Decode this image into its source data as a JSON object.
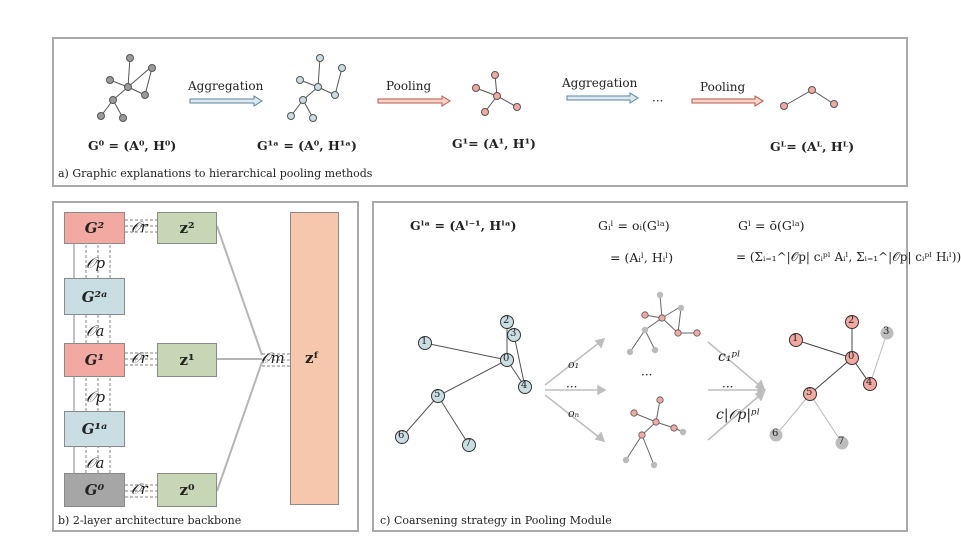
{
  "top_panel": {
    "caption": "a) Graphic explanations to hierarchical pooling methods",
    "arrows": {
      "aggregation_1": "Aggregation",
      "pooling_1": "Pooling",
      "aggregation_2": "Aggregation",
      "pooling_2": "Pooling",
      "ellipsis": "···"
    },
    "graph_labels": {
      "g0": "G⁰ = (A⁰, H⁰)",
      "g1a": "G¹ᵃ = (A⁰, H¹ᵃ)",
      "g1": "G¹= (A¹, H¹)",
      "gL": "Gᴸ= (Aᴸ, Hᴸ)"
    }
  },
  "left_panel": {
    "caption": "b) 2-layer architecture backbone",
    "boxes": {
      "g2": "G²",
      "g2a": "G²ᵃ",
      "g1": "G¹",
      "g1a": "G¹ᵃ",
      "g0": "G⁰",
      "z2": "z²",
      "z1": "z¹",
      "z0": "z⁰",
      "zF": "zᶠ"
    },
    "operators": {
      "or_2": "𝒪r",
      "op_2": "𝒪p",
      "oa_2": "𝒪a",
      "or_1": "𝒪r",
      "op_1": "𝒪p",
      "oa_1": "𝒪a",
      "or_0": "𝒪r",
      "om": "𝒪m"
    }
  },
  "right_panel": {
    "caption": "c) Coarsening strategy in Pooling Module",
    "formulas": {
      "f1": "Gˡᵃ = (Aˡ⁻¹, Hˡᵃ)",
      "f2a": "Gᵢˡ = oᵢ(Gˡᵃ)",
      "f2b": "= (Aᵢˡ, Hᵢˡ)",
      "f3a": "Gˡ = ō(Gˡᵃ)",
      "f3b": "= (Σᵢ₌₁^|𝒪p| cᵢᵖˡ Aᵢˡ, Σᵢ₌₁^|𝒪p| cᵢᵖˡ Hᵢˡ))"
    },
    "node_labels": [
      "0",
      "1",
      "2",
      "3",
      "4",
      "5",
      "6",
      "7"
    ],
    "branch_labels": {
      "o1": "o₁",
      "on": "oₙ",
      "dots_left": "···",
      "dots_mid": "···",
      "dots_right": "···",
      "c1": "c₁ᵖˡ",
      "cn": "c|𝒪p|ᵖˡ"
    }
  }
}
